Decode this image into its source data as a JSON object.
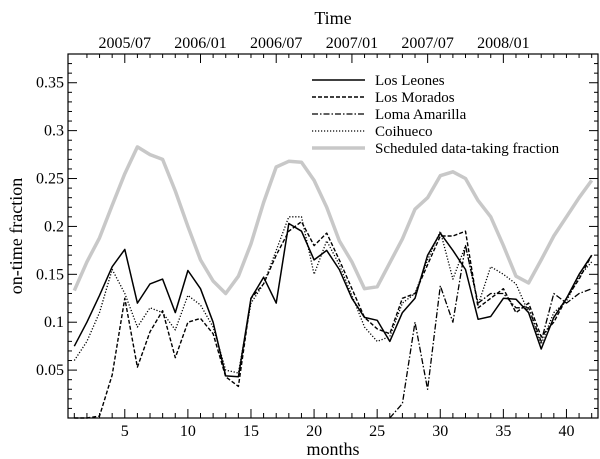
{
  "chart_data": {
    "type": "line",
    "top_axis_label": "Time",
    "top_ticks": [
      "2005/07",
      "2006/01",
      "2006/07",
      "2007/01",
      "2007/07",
      "2008/01"
    ],
    "top_tick_months": [
      5,
      11,
      17,
      23,
      29,
      35
    ],
    "xlabel": "months",
    "ylabel": "on-time fraction",
    "xlim": [
      0.5,
      42.5
    ],
    "ylim": [
      0,
      0.38
    ],
    "x_ticks": [
      5,
      10,
      15,
      20,
      25,
      30,
      35,
      40
    ],
    "y_ticks": [
      0.05,
      0.1,
      0.15,
      0.2,
      0.25,
      0.3,
      0.35
    ],
    "y_tick_labels": [
      "0.05",
      "0.1",
      "0.15",
      "0.2",
      "0.25",
      "0.3",
      "0.35"
    ],
    "grid": false,
    "legend_position": "top-right",
    "x": [
      1,
      2,
      3,
      4,
      5,
      6,
      7,
      8,
      9,
      10,
      11,
      12,
      13,
      14,
      15,
      16,
      17,
      18,
      19,
      20,
      21,
      22,
      23,
      24,
      25,
      26,
      27,
      28,
      29,
      30,
      31,
      32,
      33,
      34,
      35,
      36,
      37,
      38,
      39,
      40,
      41,
      42
    ],
    "series": [
      {
        "name": "Los Leones",
        "color": "#000000",
        "style": "solid",
        "values": [
          0.075,
          0.1,
          0.128,
          0.158,
          0.176,
          0.12,
          0.14,
          0.145,
          0.11,
          0.154,
          0.135,
          0.1,
          0.044,
          0.043,
          0.125,
          0.147,
          0.12,
          0.203,
          0.195,
          0.165,
          0.175,
          0.155,
          0.125,
          0.105,
          0.102,
          0.08,
          0.11,
          0.125,
          0.17,
          0.193,
          0.175,
          0.155,
          0.103,
          0.106,
          0.125,
          0.124,
          0.11,
          0.072,
          0.105,
          0.125,
          0.15,
          0.17
        ]
      },
      {
        "name": "Los Morados",
        "color": "#000000",
        "style": "dashed",
        "values": [
          0.0,
          0.0,
          0.002,
          0.045,
          0.125,
          0.053,
          0.09,
          0.112,
          0.063,
          0.1,
          0.104,
          0.088,
          0.043,
          0.033,
          0.125,
          0.14,
          0.17,
          0.195,
          0.205,
          0.18,
          0.193,
          0.165,
          0.135,
          0.105,
          0.093,
          0.088,
          0.125,
          0.13,
          0.16,
          0.19,
          0.19,
          0.195,
          0.115,
          0.125,
          0.135,
          0.11,
          0.12,
          0.085,
          0.1,
          0.125,
          0.145,
          0.17
        ]
      },
      {
        "name": "Loma Amarilla",
        "color": "#000000",
        "style": "dashdot",
        "values": [
          null,
          null,
          null,
          null,
          null,
          null,
          null,
          null,
          null,
          null,
          null,
          null,
          null,
          null,
          null,
          null,
          null,
          null,
          null,
          null,
          null,
          null,
          null,
          null,
          null,
          0.0,
          0.015,
          0.1,
          0.03,
          0.138,
          0.1,
          0.18,
          0.12,
          0.13,
          0.13,
          0.115,
          0.115,
          0.08,
          0.13,
          0.12,
          0.13,
          0.135
        ]
      },
      {
        "name": "Coihueco",
        "color": "#000000",
        "style": "dotted",
        "values": [
          0.06,
          0.08,
          0.11,
          0.155,
          0.13,
          0.095,
          0.115,
          0.11,
          0.092,
          0.128,
          0.118,
          0.095,
          0.05,
          0.047,
          0.12,
          0.14,
          0.175,
          0.21,
          0.21,
          0.15,
          0.185,
          0.16,
          0.128,
          0.095,
          0.08,
          0.085,
          0.12,
          0.13,
          0.165,
          0.195,
          0.145,
          0.18,
          0.118,
          0.158,
          0.15,
          0.14,
          0.11,
          0.077,
          0.11,
          0.122,
          0.148,
          0.163
        ]
      },
      {
        "name": "Scheduled data-taking fraction",
        "color": "#c8c8c8",
        "style": "thick",
        "values": [
          0.133,
          0.163,
          0.188,
          0.222,
          0.255,
          0.283,
          0.275,
          0.27,
          0.237,
          0.2,
          0.165,
          0.143,
          0.13,
          0.148,
          0.182,
          0.225,
          0.262,
          0.268,
          0.267,
          0.248,
          0.22,
          0.185,
          0.163,
          0.135,
          0.137,
          0.162,
          0.187,
          0.218,
          0.23,
          0.253,
          0.257,
          0.25,
          0.227,
          0.21,
          0.18,
          0.148,
          0.141,
          0.165,
          0.19,
          0.21,
          0.23,
          0.248
        ]
      }
    ]
  }
}
